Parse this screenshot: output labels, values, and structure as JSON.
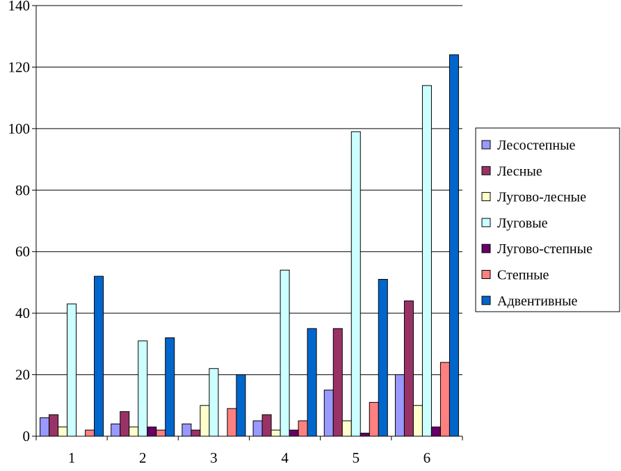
{
  "chart_data": {
    "type": "bar",
    "categories": [
      "1",
      "2",
      "3",
      "4",
      "5",
      "6"
    ],
    "series": [
      {
        "name": "Лесостепные",
        "color": "#9999ff",
        "values": [
          6,
          4,
          4,
          5,
          15,
          20
        ]
      },
      {
        "name": "Лесные",
        "color": "#993366",
        "values": [
          7,
          8,
          2,
          7,
          35,
          44
        ]
      },
      {
        "name": "Лугово-лесные",
        "color": "#ffffcc",
        "values": [
          3,
          3,
          10,
          2,
          5,
          10
        ]
      },
      {
        "name": "Луговые",
        "color": "#ccffff",
        "values": [
          43,
          31,
          22,
          54,
          99,
          114
        ]
      },
      {
        "name": "Лугово-степные",
        "color": "#660066",
        "values": [
          0,
          3,
          0,
          2,
          1,
          3
        ]
      },
      {
        "name": "Степные",
        "color": "#ff8080",
        "values": [
          2,
          2,
          9,
          5,
          11,
          24
        ]
      },
      {
        "name": "Адвентивные",
        "color": "#0066cc",
        "values": [
          52,
          32,
          20,
          35,
          51,
          124
        ]
      }
    ],
    "ylim": [
      0,
      140
    ],
    "yticks": [
      "0",
      "20",
      "40",
      "60",
      "80",
      "100",
      "120",
      "140"
    ],
    "grid": true,
    "legend_position": "right"
  }
}
